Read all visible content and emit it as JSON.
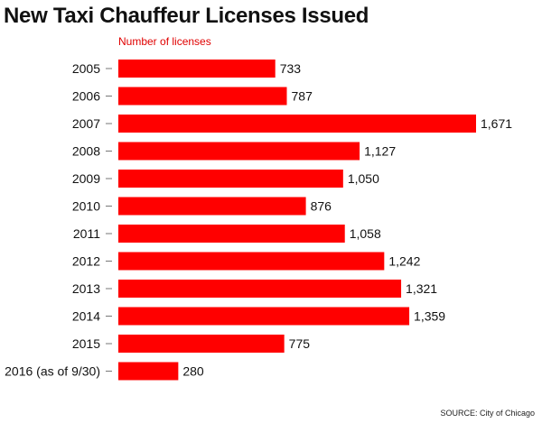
{
  "chart_data": {
    "type": "bar",
    "orientation": "horizontal",
    "title": "New Taxi Chauffeur Licenses Issued",
    "axis_label": "Number of licenses",
    "categories": [
      "2005",
      "2006",
      "2007",
      "2008",
      "2009",
      "2010",
      "2011",
      "2012",
      "2013",
      "2014",
      "2015",
      "2016 (as of 9/30)"
    ],
    "values": [
      733,
      787,
      1671,
      1127,
      1050,
      876,
      1058,
      1242,
      1321,
      1359,
      775,
      280
    ],
    "value_labels": [
      "733",
      "787",
      "1,671",
      "1,127",
      "1,050",
      "876",
      "1,058",
      "1,242",
      "1,321",
      "1,359",
      "775",
      "280"
    ],
    "xlim": [
      0,
      1671
    ],
    "grid": false,
    "legend": "none",
    "source": "SOURCE: City of Chicago"
  },
  "colors": {
    "bar": "#ff0000",
    "axis_label": "#e00000",
    "text": "#111111",
    "tick": "#777777"
  }
}
